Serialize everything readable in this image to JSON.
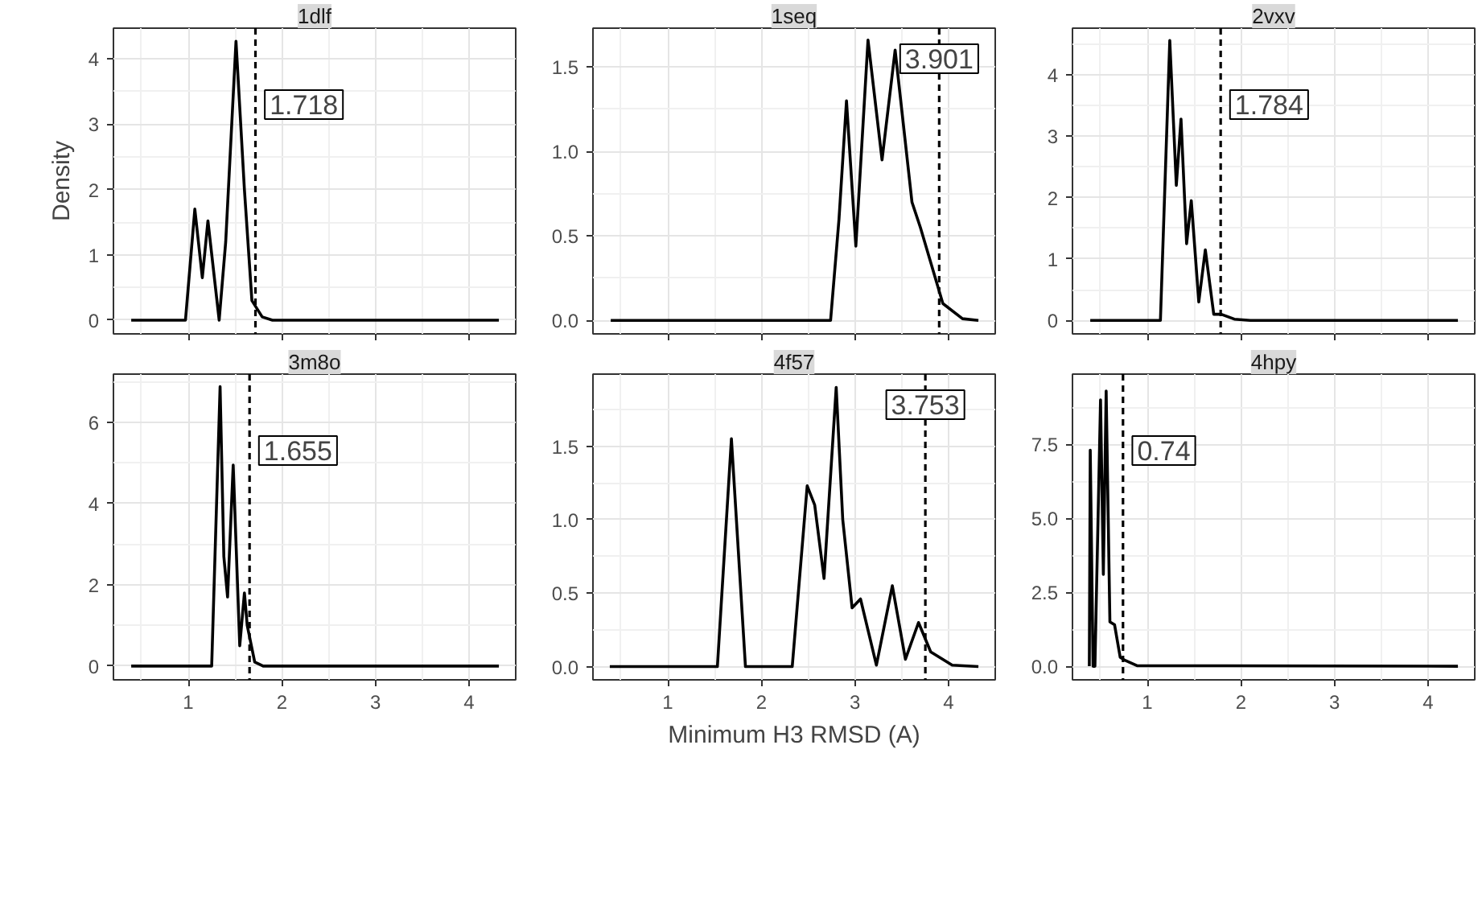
{
  "chart_data": [
    {
      "type": "line",
      "title": "1dlf",
      "tick_labels": "y",
      "grid": true,
      "xlim": [
        0.2,
        4.5
      ],
      "xticks": [
        1,
        2,
        3,
        4
      ],
      "ylim": [
        -0.21,
        4.47
      ],
      "yticks": [
        0,
        1,
        2,
        3,
        4
      ],
      "ylabel": "Density",
      "ref_lines": [
        {
          "axis": "x",
          "value": 1.718,
          "label": "1.718",
          "line_style": "dashed",
          "color": "#000000"
        }
      ],
      "series": [
        {
          "color": "#000000",
          "x": [
            0.39,
            0.97,
            1.07,
            1.15,
            1.21,
            1.33,
            1.4,
            1.51,
            1.6,
            1.68,
            1.79,
            1.9,
            4.32
          ],
          "values": [
            0,
            0,
            1.7,
            0.65,
            1.52,
            0,
            1.2,
            4.27,
            2.0,
            0.3,
            0.05,
            0,
            0
          ]
        }
      ]
    },
    {
      "type": "line",
      "title": "1seq",
      "tick_labels": "y",
      "grid": true,
      "xlim": [
        0.2,
        4.5
      ],
      "xticks": [
        1,
        2,
        3,
        4
      ],
      "ylim": [
        -0.08,
        1.73
      ],
      "yticks": [
        {
          "value": 0,
          "label": "0.0"
        },
        0.5,
        {
          "value": 1,
          "label": "1.0"
        },
        1.5
      ],
      "ref_lines": [
        {
          "axis": "x",
          "value": 3.901,
          "label": "3.901",
          "line_style": "dashed",
          "color": "#000000"
        }
      ],
      "series": [
        {
          "color": "#000000",
          "x": [
            0.39,
            2.74,
            2.83,
            2.91,
            3.01,
            3.14,
            3.29,
            3.43,
            3.61,
            3.7,
            3.94,
            4.15,
            4.32
          ],
          "values": [
            0,
            0,
            0.6,
            1.3,
            0.44,
            1.66,
            0.95,
            1.6,
            0.7,
            0.55,
            0.1,
            0.01,
            0
          ]
        }
      ]
    },
    {
      "type": "line",
      "title": "2vxv",
      "tick_labels": "y",
      "grid": true,
      "xlim": [
        0.2,
        4.5
      ],
      "xticks": [
        1,
        2,
        3,
        4
      ],
      "ylim": [
        -0.22,
        4.76
      ],
      "yticks": [
        0,
        1,
        2,
        3,
        4
      ],
      "ref_lines": [
        {
          "axis": "x",
          "value": 1.784,
          "label": "1.784",
          "line_style": "dashed",
          "color": "#000000"
        }
      ],
      "series": [
        {
          "color": "#000000",
          "x": [
            0.39,
            1.14,
            1.24,
            1.31,
            1.36,
            1.42,
            1.47,
            1.55,
            1.62,
            1.71,
            1.79,
            1.93,
            2.1,
            4.32
          ],
          "values": [
            0,
            0,
            4.56,
            2.2,
            3.28,
            1.25,
            1.95,
            0.3,
            1.15,
            0.1,
            0.1,
            0.02,
            0,
            0
          ]
        }
      ]
    },
    {
      "type": "line",
      "title": "3m8o",
      "grid": true,
      "xlim": [
        0.2,
        4.5
      ],
      "xticks": [
        1,
        2,
        3,
        4
      ],
      "ylim": [
        -0.34,
        7.19
      ],
      "yticks": [
        0,
        2,
        4,
        6
      ],
      "ref_lines": [
        {
          "axis": "x",
          "value": 1.655,
          "label": "1.655",
          "line_style": "dashed",
          "color": "#000000"
        }
      ],
      "series": [
        {
          "color": "#000000",
          "x": [
            0.39,
            1.25,
            1.34,
            1.38,
            1.42,
            1.48,
            1.55,
            1.6,
            1.63,
            1.71,
            1.8,
            4.32
          ],
          "values": [
            0,
            0,
            6.88,
            2.7,
            1.7,
            4.95,
            0.5,
            1.8,
            1.0,
            0.1,
            0,
            0
          ]
        }
      ]
    },
    {
      "type": "line",
      "title": "4f57",
      "xlabel": "Minimum H3 RMSD (A)",
      "grid": true,
      "xlim": [
        0.2,
        4.5
      ],
      "xticks": [
        1,
        2,
        3,
        4
      ],
      "ylim": [
        -0.09,
        1.99
      ],
      "yticks": [
        {
          "value": 0,
          "label": "0.0"
        },
        0.5,
        {
          "value": 1,
          "label": "1.0"
        },
        1.5
      ],
      "ref_lines": [
        {
          "axis": "x",
          "value": 3.753,
          "label": "3.753",
          "line_style": "dashed",
          "color": "#000000"
        }
      ],
      "series": [
        {
          "color": "#000000",
          "x": [
            0.38,
            1.53,
            1.68,
            1.83,
            2.33,
            2.49,
            2.57,
            2.67,
            2.8,
            2.87,
            2.97,
            3.06,
            3.23,
            3.4,
            3.54,
            3.68,
            3.81,
            4.04,
            4.32
          ],
          "values": [
            0,
            0,
            1.55,
            0,
            0,
            1.23,
            1.1,
            0.6,
            1.9,
            1.0,
            0.4,
            0.46,
            0.01,
            0.55,
            0.05,
            0.3,
            0.1,
            0.01,
            0
          ]
        }
      ]
    },
    {
      "type": "line",
      "title": "4hpy",
      "grid": true,
      "xlim": [
        0.2,
        4.5
      ],
      "xticks": [
        1,
        2,
        3,
        4
      ],
      "ylim": [
        -0.46,
        9.87
      ],
      "yticks": [
        {
          "value": 0,
          "label": "0.0"
        },
        2.5,
        {
          "value": 5,
          "label": "5.0"
        },
        7.5
      ],
      "ref_lines": [
        {
          "axis": "x",
          "value": 0.74,
          "label": "0.74",
          "line_style": "dashed",
          "color": "#000000"
        }
      ],
      "series": [
        {
          "color": "#000000",
          "x": [
            0.38,
            0.39,
            0.42,
            0.44,
            0.5,
            0.53,
            0.56,
            0.6,
            0.65,
            0.71,
            0.76,
            0.89,
            4.32
          ],
          "values": [
            0,
            7.3,
            0,
            0,
            9.0,
            3.1,
            9.3,
            1.5,
            1.4,
            0.3,
            0.2,
            0.02,
            0
          ]
        }
      ]
    }
  ]
}
